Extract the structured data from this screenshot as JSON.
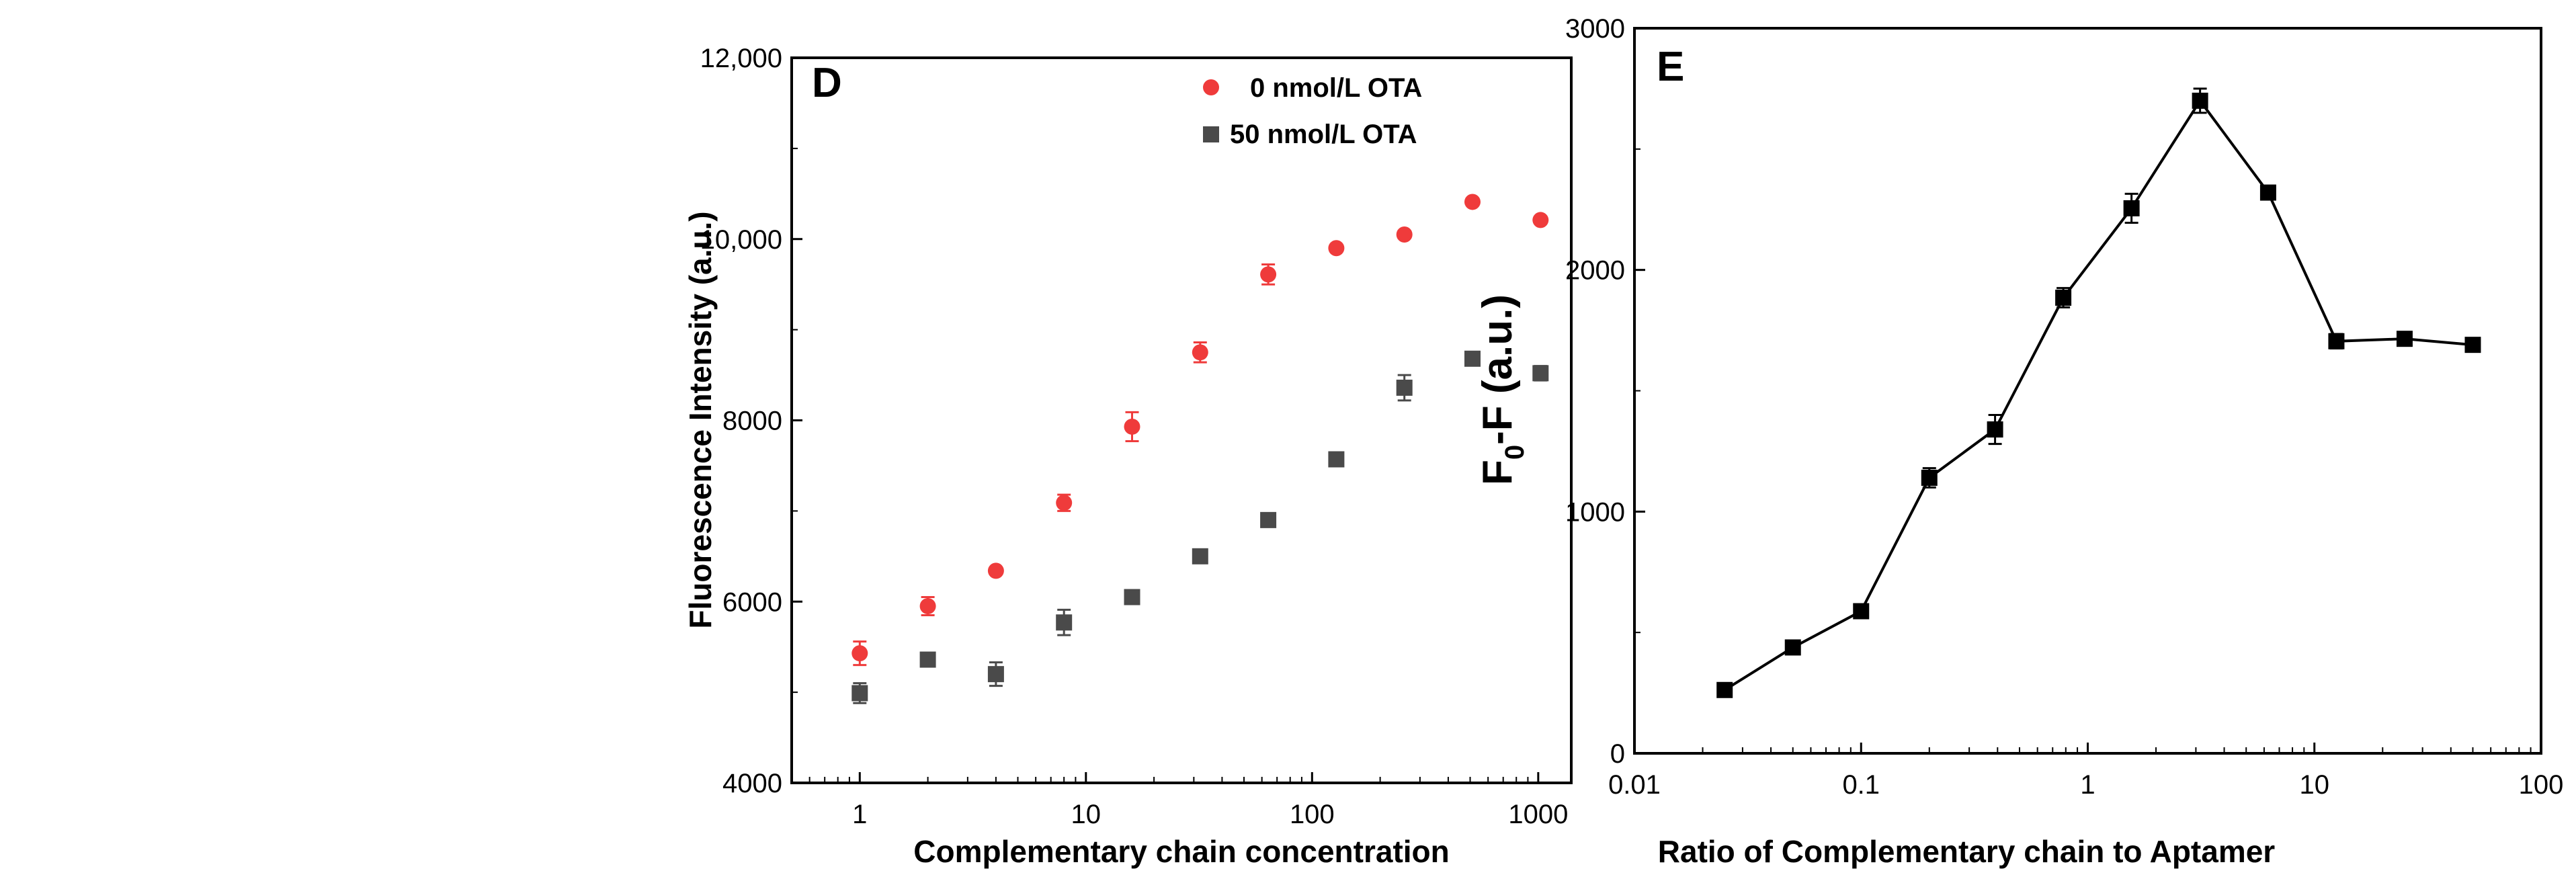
{
  "chart_data": [
    {
      "panel": "D",
      "type": "scatter",
      "xscale": "log",
      "xlim": [
        0.5,
        1400
      ],
      "ylim": [
        4000,
        12000
      ],
      "xticks": [
        1,
        10,
        100,
        1000
      ],
      "xtick_labels": [
        "1",
        "10",
        "100",
        "1000"
      ],
      "yticks": [
        4000,
        6000,
        8000,
        10000,
        12000
      ],
      "ytick_labels": [
        "4000",
        "6000",
        "8000",
        "10,000",
        "12,000"
      ],
      "xlabel": "Complementary chain concentration",
      "ylabel": "Fluorescence Intensity (a.u.)",
      "legend_position": "top-right",
      "series": [
        {
          "name": "0 nmol/L OTA",
          "color": "#ef3b3b",
          "marker": "circle",
          "x": [
            1,
            2,
            4,
            8,
            16,
            32,
            64,
            128,
            256,
            512,
            1024
          ],
          "values": [
            5430,
            5950,
            6340,
            7090,
            7930,
            8750,
            9610,
            9900,
            10050,
            10410,
            10210
          ],
          "errors": [
            130,
            100,
            30,
            90,
            160,
            110,
            110,
            20,
            40,
            20,
            30
          ]
        },
        {
          "name": "50 nmol/L OTA",
          "color": "#4a4a4a",
          "marker": "square",
          "x": [
            1,
            2,
            4,
            8,
            16,
            32,
            64,
            128,
            256,
            512,
            1024
          ],
          "values": [
            4990,
            5360,
            5200,
            5770,
            6050,
            6500,
            6900,
            7570,
            8360,
            8680,
            8520
          ],
          "errors": [
            110,
            30,
            130,
            140,
            20,
            70,
            30,
            20,
            140,
            40,
            80
          ]
        }
      ]
    },
    {
      "panel": "E",
      "type": "line",
      "xscale": "log",
      "xlim": [
        0.01,
        100
      ],
      "ylim": [
        0,
        3000
      ],
      "xticks": [
        0.01,
        0.1,
        1,
        10,
        100
      ],
      "xtick_labels": [
        "0.01",
        "0.1",
        "1",
        "10",
        "100"
      ],
      "yticks": [
        0,
        1000,
        2000,
        3000
      ],
      "ytick_labels": [
        "0",
        "1000",
        "2000",
        "3000"
      ],
      "xlabel": "Ratio of Complementary chain to Aptamer",
      "ylabel": {
        "f": "F",
        "sub": "0",
        "rest": "-F (a.u.)"
      },
      "series": [
        {
          "name": "F0-F",
          "color": "#000000",
          "marker": "square",
          "x": [
            0.025,
            0.05,
            0.1,
            0.2,
            0.39,
            0.78,
            1.56,
            3.13,
            6.25,
            12.5,
            25,
            50
          ],
          "values": [
            262,
            438,
            588,
            1140,
            1340,
            1885,
            2255,
            2700,
            2320,
            1705,
            1715,
            1690
          ],
          "errors": [
            10,
            10,
            20,
            40,
            60,
            40,
            60,
            50,
            10,
            30,
            10,
            10
          ]
        }
      ]
    }
  ]
}
